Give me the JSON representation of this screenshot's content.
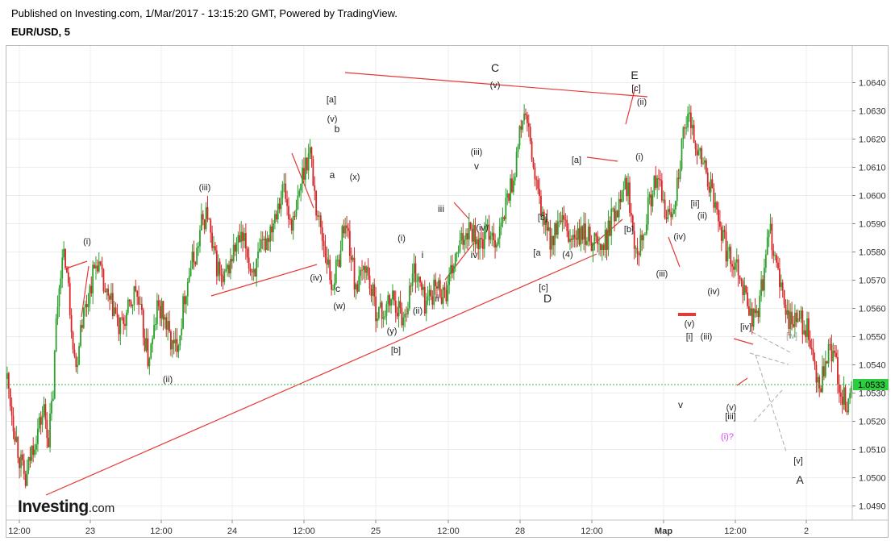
{
  "header": {
    "published": "Published on Investing.com, 1/Mar/2017 - 13:15:20 GMT, Powered by TradingView.",
    "symbol": "EUR/USD, 5"
  },
  "logo": {
    "main": "Investing",
    "suffix": ".com"
  },
  "chart_data": {
    "type": "candlestick",
    "symbol": "EUR/USD",
    "interval": "5",
    "ylim": [
      1.0485,
      1.0653
    ],
    "grid": true,
    "y_ticks": [
      "1.0490",
      "1.0500",
      "1.0510",
      "1.0520",
      "1.0530",
      "1.0540",
      "1.0550",
      "1.0560",
      "1.0570",
      "1.0580",
      "1.0590",
      "1.0600",
      "1.0610",
      "1.0620",
      "1.0630",
      "1.0640"
    ],
    "x_ticks": [
      "12:00",
      "23",
      "12:00",
      "24",
      "12:00",
      "25",
      "12:00",
      "28",
      "12:00",
      "Мар",
      "12:00",
      "2"
    ],
    "last_price": "1.0533",
    "last_price_value": 1.0533,
    "price_path": [
      [
        0,
        1.0535
      ],
      [
        4,
        1.052
      ],
      [
        8,
        1.0507
      ],
      [
        12,
        1.0498
      ],
      [
        16,
        1.051
      ],
      [
        20,
        1.0517
      ],
      [
        24,
        1.0524
      ],
      [
        27,
        1.0514
      ],
      [
        30,
        1.053
      ],
      [
        32,
        1.0555
      ],
      [
        35,
        1.0575
      ],
      [
        38,
        1.0578
      ],
      [
        42,
        1.0555
      ],
      [
        45,
        1.0538
      ],
      [
        48,
        1.0555
      ],
      [
        52,
        1.0562
      ],
      [
        56,
        1.0572
      ],
      [
        59,
        1.0577
      ],
      [
        63,
        1.0567
      ],
      [
        66,
        1.0562
      ],
      [
        70,
        1.056
      ],
      [
        73,
        1.0552
      ],
      [
        76,
        1.0555
      ],
      [
        80,
        1.056
      ],
      [
        84,
        1.0567
      ],
      [
        88,
        1.0555
      ],
      [
        92,
        1.0542
      ],
      [
        95,
        1.0548
      ],
      [
        98,
        1.056
      ],
      [
        102,
        1.0558
      ],
      [
        106,
        1.055
      ],
      [
        109,
        1.0545
      ],
      [
        113,
        1.0552
      ],
      [
        116,
        1.0565
      ],
      [
        120,
        1.0575
      ],
      [
        124,
        1.058
      ],
      [
        127,
        1.059
      ],
      [
        131,
        1.0594
      ],
      [
        134,
        1.058
      ],
      [
        138,
        1.0574
      ],
      [
        141,
        1.0568
      ],
      [
        145,
        1.0575
      ],
      [
        148,
        1.058
      ],
      [
        152,
        1.0584
      ],
      [
        156,
        1.0582
      ],
      [
        159,
        1.0574
      ],
      [
        163,
        1.0575
      ],
      [
        166,
        1.058
      ],
      [
        170,
        1.0585
      ],
      [
        174,
        1.0592
      ],
      [
        177,
        1.0598
      ],
      [
        181,
        1.0603
      ],
      [
        184,
        1.0592
      ],
      [
        188,
        1.059
      ],
      [
        192,
        1.0605
      ],
      [
        195,
        1.0612
      ],
      [
        198,
        1.0616
      ],
      [
        202,
        1.0596
      ],
      [
        205,
        1.0588
      ],
      [
        209,
        1.0578
      ],
      [
        212,
        1.0568
      ],
      [
        216,
        1.0575
      ],
      [
        220,
        1.059
      ],
      [
        223,
        1.0586
      ],
      [
        227,
        1.057
      ],
      [
        230,
        1.0568
      ],
      [
        234,
        1.0576
      ],
      [
        238,
        1.0566
      ],
      [
        241,
        1.056
      ],
      [
        245,
        1.0558
      ],
      [
        248,
        1.056
      ],
      [
        252,
        1.0564
      ],
      [
        256,
        1.056
      ],
      [
        259,
        1.0556
      ],
      [
        263,
        1.0566
      ],
      [
        266,
        1.0574
      ],
      [
        270,
        1.0568
      ],
      [
        273,
        1.0562
      ],
      [
        277,
        1.0565
      ],
      [
        281,
        1.0568
      ],
      [
        284,
        1.0566
      ],
      [
        288,
        1.0566
      ],
      [
        291,
        1.0574
      ],
      [
        295,
        1.058
      ],
      [
        299,
        1.0586
      ],
      [
        302,
        1.059
      ],
      [
        306,
        1.0586
      ],
      [
        309,
        1.0582
      ],
      [
        313,
        1.0586
      ],
      [
        316,
        1.0588
      ],
      [
        320,
        1.0584
      ],
      [
        324,
        1.059
      ],
      [
        327,
        1.06
      ],
      [
        331,
        1.0606
      ],
      [
        334,
        1.0618
      ],
      [
        338,
        1.063
      ],
      [
        342,
        1.0618
      ],
      [
        345,
        1.0605
      ],
      [
        349,
        1.0595
      ],
      [
        352,
        1.0588
      ],
      [
        356,
        1.0584
      ],
      [
        359,
        1.0588
      ],
      [
        363,
        1.059
      ],
      [
        367,
        1.0585
      ],
      [
        370,
        1.0585
      ],
      [
        374,
        1.0585
      ],
      [
        377,
        1.0586
      ],
      [
        381,
        1.0585
      ],
      [
        385,
        1.0584
      ],
      [
        388,
        1.058
      ],
      [
        392,
        1.0585
      ],
      [
        395,
        1.0592
      ],
      [
        399,
        1.0596
      ],
      [
        402,
        1.0605
      ],
      [
        406,
        1.0602
      ],
      [
        410,
        1.0585
      ],
      [
        413,
        1.0583
      ],
      [
        417,
        1.059
      ],
      [
        420,
        1.0598
      ],
      [
        424,
        1.0605
      ],
      [
        427,
        1.0602
      ],
      [
        431,
        1.0592
      ],
      [
        435,
        1.0595
      ],
      [
        438,
        1.0605
      ],
      [
        442,
        1.062
      ],
      [
        445,
        1.0627
      ],
      [
        449,
        1.0622
      ],
      [
        452,
        1.0615
      ],
      [
        456,
        1.061
      ],
      [
        460,
        1.0602
      ],
      [
        463,
        1.0595
      ],
      [
        467,
        1.0588
      ],
      [
        470,
        1.058
      ],
      [
        474,
        1.0578
      ],
      [
        478,
        1.0575
      ],
      [
        481,
        1.0568
      ],
      [
        485,
        1.056
      ],
      [
        488,
        1.0556
      ],
      [
        492,
        1.0562
      ],
      [
        495,
        1.0575
      ],
      [
        499,
        1.0588
      ],
      [
        503,
        1.0575
      ],
      [
        506,
        1.0565
      ],
      [
        510,
        1.0558
      ],
      [
        513,
        1.0555
      ],
      [
        517,
        1.0556
      ],
      [
        520,
        1.0555
      ],
      [
        524,
        1.0551
      ],
      [
        527,
        1.054
      ],
      [
        531,
        1.053
      ],
      [
        535,
        1.054
      ],
      [
        538,
        1.0545
      ],
      [
        542,
        1.054
      ],
      [
        545,
        1.053
      ],
      [
        549,
        1.0526
      ],
      [
        552,
        1.0533
      ]
    ]
  },
  "annotations": {
    "waves": [
      "[a]",
      "(v)",
      "b",
      "a",
      "(x)",
      "c",
      "(w)",
      "(iv)",
      "(iii)",
      "(i)",
      "(ii)",
      "(i)",
      "i",
      "ii",
      "(ii)",
      "(y)",
      "[b]",
      "iii",
      "iv",
      "(iv)",
      "v",
      "(iii)",
      "C",
      "(v)",
      "[b]",
      "[a",
      "(4)",
      "[a]",
      "[c]",
      "D",
      "E",
      "[c]",
      "(ii)",
      "(i)",
      "[b]",
      "[ii]",
      "(ii)",
      "(iv)",
      "(iii)",
      "(v)",
      "[i]",
      "(iv)",
      "(iii)",
      "[iv]",
      "[iv]",
      "(v)",
      "[iii]",
      "(i)?",
      "v",
      "[v]",
      "A"
    ]
  }
}
